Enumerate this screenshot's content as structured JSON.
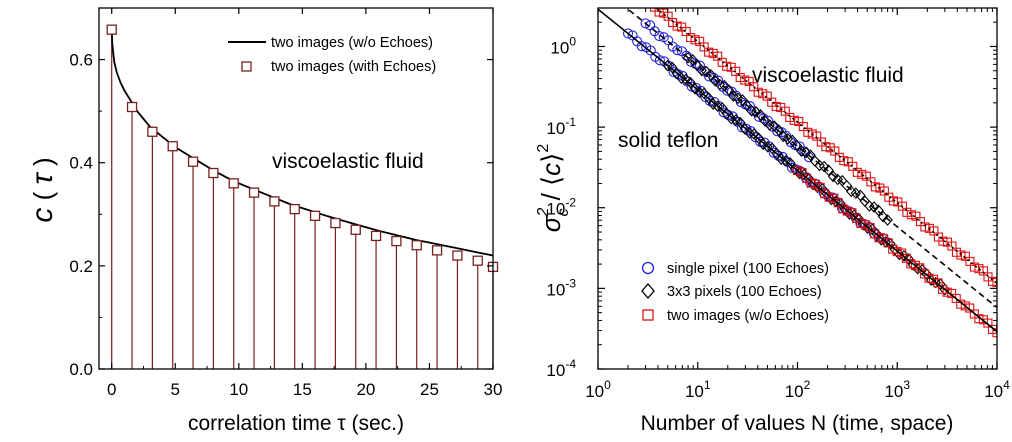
{
  "chart_data": [
    {
      "type": "line",
      "title": "",
      "xlabel": "correlation time τ (sec.)",
      "ylabel": "c(τ)",
      "xlim": [
        -1,
        30
      ],
      "ylim": [
        0,
        0.7
      ],
      "x_ticks": [
        "0",
        "5",
        "10",
        "15",
        "20",
        "25",
        "30"
      ],
      "y_ticks": [
        "0.0",
        "0.2",
        "0.4",
        "0.6"
      ],
      "annotation": "viscoelastic fluid",
      "legend_position": "top-right",
      "series": [
        {
          "name": "two images (w/o Echoes)",
          "style": "solid line",
          "color": "#000000",
          "x": [
            0,
            0.05,
            0.2,
            0.4,
            0.7,
            1,
            1.5,
            2,
            3,
            4,
            5,
            6,
            7,
            8,
            9,
            10,
            11,
            12,
            13,
            14,
            15,
            16,
            17,
            18,
            19,
            20,
            21,
            22,
            23,
            24,
            25,
            26,
            27,
            28,
            29,
            30
          ],
          "y": [
            0.66,
            0.63,
            0.595,
            0.575,
            0.555,
            0.54,
            0.52,
            0.5,
            0.47,
            0.45,
            0.43,
            0.415,
            0.4,
            0.385,
            0.372,
            0.36,
            0.35,
            0.34,
            0.33,
            0.32,
            0.312,
            0.304,
            0.296,
            0.289,
            0.282,
            0.275,
            0.268,
            0.262,
            0.256,
            0.25,
            0.245,
            0.24,
            0.235,
            0.23,
            0.225,
            0.22
          ]
        },
        {
          "name": "two images (with Echoes)",
          "style": "open squares with drop lines",
          "color": "#7a1f1f",
          "x": [
            0,
            1.6,
            3.2,
            4.8,
            6.4,
            8,
            9.6,
            11.2,
            12.8,
            14.4,
            16,
            17.6,
            19.2,
            20.8,
            22.4,
            24,
            25.6,
            27.2,
            28.8,
            30
          ],
          "y": [
            0.658,
            0.508,
            0.46,
            0.432,
            0.402,
            0.38,
            0.36,
            0.342,
            0.325,
            0.31,
            0.297,
            0.283,
            0.27,
            0.258,
            0.248,
            0.24,
            0.23,
            0.22,
            0.21,
            0.198
          ]
        }
      ]
    },
    {
      "type": "scatter",
      "title": "",
      "xlabel": "Number of values N (time, space)",
      "ylabel": "σ_c² / ⟨c⟩²",
      "x_scale": "log",
      "y_scale": "log",
      "xlim": [
        1,
        10000
      ],
      "ylim": [
        0.0001,
        3
      ],
      "x_ticks": [
        "10",
        "10",
        "10",
        "10",
        "10"
      ],
      "x_tick_exp": [
        "0",
        "1",
        "2",
        "3",
        "4"
      ],
      "y_ticks": [
        "10",
        "10",
        "10",
        "10",
        "10"
      ],
      "y_tick_exp": [
        "-4",
        "-3",
        "-2",
        "-1",
        "0"
      ],
      "annotations": [
        "viscoelastic fluid",
        "solid teflon"
      ],
      "legend_position": "bottom-left",
      "series": [
        {
          "name": "single pixel (100 Echoes)",
          "marker": "circle",
          "color": "#2222dd",
          "segments": [
            {
              "x_range": [
                2,
                800
              ],
              "a": 2.9
            },
            {
              "x_range": [
                3,
                130
              ],
              "a": 5.8
            }
          ]
        },
        {
          "name": "3x3 pixels (100 Echoes)",
          "marker": "diamond",
          "color": "#000000",
          "segments": [
            {
              "x_range": [
                5,
                3000
              ],
              "a": 2.9
            },
            {
              "x_range": [
                8,
                800
              ],
              "a": 5.8
            }
          ]
        },
        {
          "name": "two images (w/o Echoes)",
          "marker": "square",
          "color": "#dd1111",
          "segments": [
            {
              "x_range": [
                100,
                10000
              ],
              "a": 2.9
            },
            {
              "x_range": [
                3,
                10000
              ],
              "a": 11.5
            }
          ]
        }
      ],
      "fit_lines": [
        {
          "style": "solid",
          "a": 2.9
        },
        {
          "style": "dashed",
          "a": 5.8
        },
        {
          "style": "dotted",
          "a": 11.5
        }
      ]
    }
  ]
}
